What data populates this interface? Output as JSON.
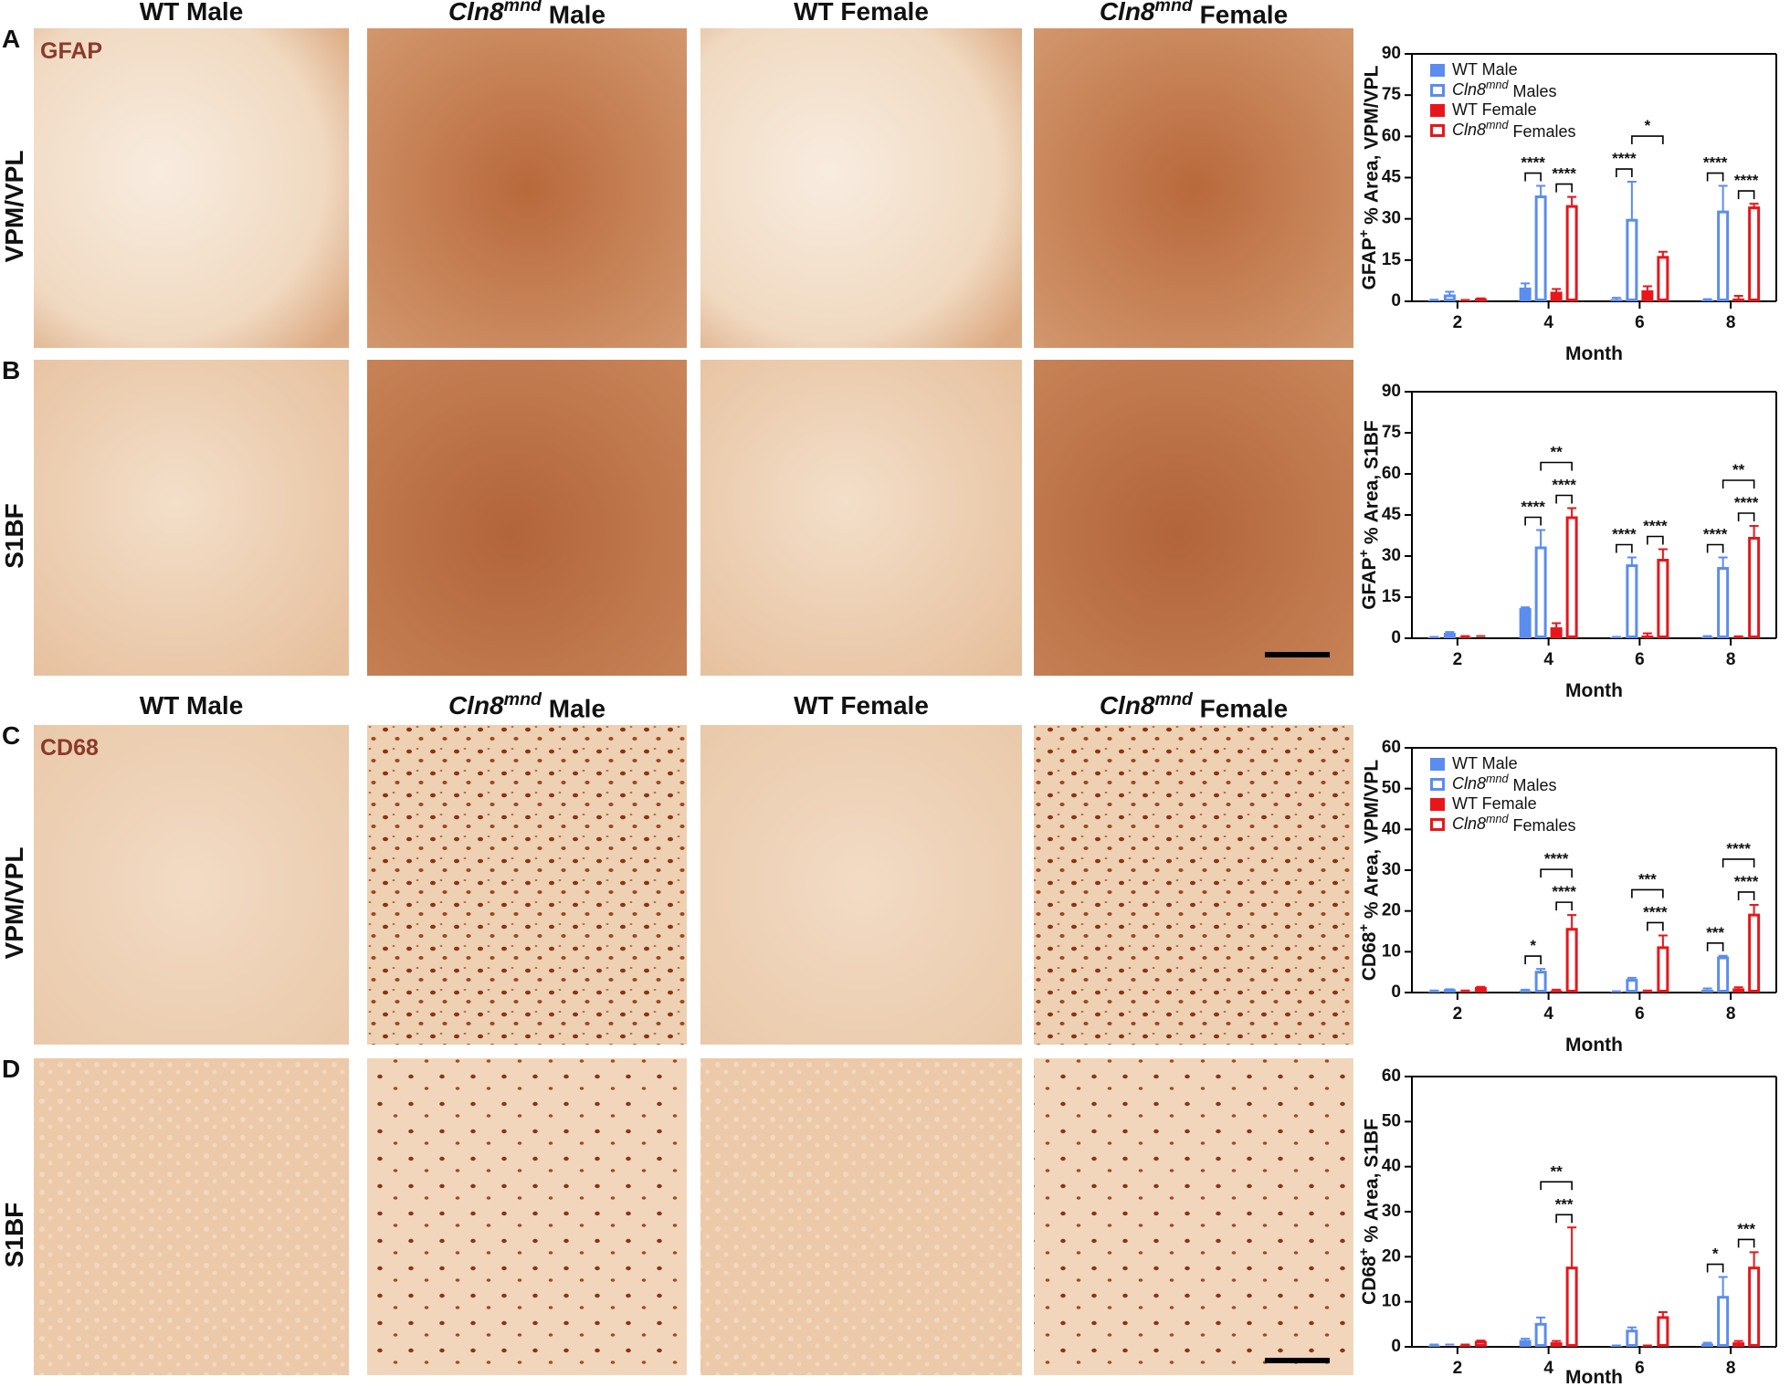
{
  "headers": {
    "top": [
      "WT Male",
      "Cln8mnd Male",
      "WT Female",
      "Cln8mnd Female"
    ],
    "middle": [
      "WT Male",
      "Cln8mnd Male",
      "WT Female",
      "Cln8mnd Female"
    ]
  },
  "panels": [
    {
      "letter": "A",
      "row_label": "VPM/VPL",
      "stain": "GFAP"
    },
    {
      "letter": "B",
      "row_label": "S1BF"
    },
    {
      "letter": "C",
      "row_label": "VPM/VPL",
      "stain": "CD68"
    },
    {
      "letter": "D",
      "row_label": "S1BF"
    }
  ],
  "chart_data": [
    {
      "type": "bar",
      "x_label": "Month",
      "y_label": "GFAP+ % Area, VPM/VPL",
      "categories": [
        "2",
        "4",
        "6",
        "8"
      ],
      "ylim": [
        0,
        90
      ],
      "yticks": [
        0,
        15,
        30,
        45,
        60,
        75,
        90
      ],
      "legend": "upper-left",
      "series": [
        {
          "name": "WT Male",
          "color": "#5b8def",
          "filled": true,
          "values": [
            0.3,
            5,
            0.8,
            0.5
          ],
          "errors": [
            0.3,
            1.5,
            0.5,
            0.3
          ]
        },
        {
          "name": "Cln8mnd Males",
          "color": "#5b8def",
          "filled": false,
          "values": [
            2,
            38,
            29.5,
            32.5
          ],
          "errors": [
            1.5,
            4,
            14,
            9.5
          ]
        },
        {
          "name": "WT Female",
          "color": "#e8161b",
          "filled": true,
          "values": [
            0.3,
            3.5,
            4,
            1
          ],
          "errors": [
            0.2,
            1,
            1.5,
            1
          ]
        },
        {
          "name": "Cln8mnd Females",
          "color": "#e8161b",
          "filled": false,
          "values": [
            0.6,
            34.5,
            16,
            34
          ],
          "errors": [
            0.5,
            3.5,
            2,
            1.5
          ]
        }
      ],
      "annotations": [
        {
          "text": "****",
          "category": 1,
          "series": [
            0,
            1
          ]
        },
        {
          "text": "****",
          "category": 1,
          "series": [
            2,
            3
          ]
        },
        {
          "text": "****",
          "category": 2,
          "series": [
            0,
            1
          ]
        },
        {
          "text": "*",
          "category": 2,
          "series": [
            1,
            3
          ]
        },
        {
          "text": "****",
          "category": 3,
          "series": [
            0,
            1
          ]
        },
        {
          "text": "****",
          "category": 3,
          "series": [
            2,
            3
          ]
        }
      ]
    },
    {
      "type": "bar",
      "x_label": "Month",
      "y_label": "GFAP+ % Area, S1BF",
      "categories": [
        "2",
        "4",
        "6",
        "8"
      ],
      "ylim": [
        0,
        90
      ],
      "yticks": [
        0,
        15,
        30,
        45,
        60,
        75,
        90
      ],
      "series": [
        {
          "color": "#5b8def",
          "filled": true,
          "values": [
            0.3,
            11,
            0.3,
            0.5
          ],
          "errors": [
            0.2,
            0.3,
            0.2,
            0.3
          ]
        },
        {
          "color": "#5b8def",
          "filled": false,
          "values": [
            1.5,
            33,
            26.5,
            25.5
          ],
          "errors": [
            0.8,
            6.5,
            3,
            4
          ]
        },
        {
          "color": "#e8161b",
          "filled": true,
          "values": [
            0.5,
            4,
            1,
            0.5
          ],
          "errors": [
            0.3,
            1.5,
            0.8,
            0.2
          ]
        },
        {
          "color": "#e8161b",
          "filled": false,
          "values": [
            0.5,
            44,
            28.5,
            36.5
          ],
          "errors": [
            0.3,
            3.5,
            4,
            4.5
          ]
        }
      ],
      "annotations": [
        {
          "text": "****",
          "category": 1,
          "series": [
            0,
            1
          ]
        },
        {
          "text": "****",
          "category": 1,
          "series": [
            2,
            3
          ]
        },
        {
          "text": "**",
          "category": 1,
          "series": [
            1,
            3
          ]
        },
        {
          "text": "****",
          "category": 2,
          "series": [
            0,
            1
          ]
        },
        {
          "text": "****",
          "category": 2,
          "series": [
            2,
            3
          ]
        },
        {
          "text": "****",
          "category": 3,
          "series": [
            0,
            1
          ]
        },
        {
          "text": "****",
          "category": 3,
          "series": [
            2,
            3
          ]
        },
        {
          "text": "**",
          "category": 3,
          "series": [
            1,
            3
          ]
        }
      ]
    },
    {
      "type": "bar",
      "x_label": "Month",
      "y_label": "CD68+ % Area, VPM/VPL",
      "categories": [
        "2",
        "4",
        "6",
        "8"
      ],
      "ylim": [
        0,
        60
      ],
      "yticks": [
        0,
        10,
        20,
        30,
        40,
        50,
        60
      ],
      "legend": "upper-left",
      "series": [
        {
          "name": "WT Male",
          "color": "#5b8def",
          "filled": true,
          "values": [
            0.3,
            0.5,
            0.2,
            0.7
          ],
          "errors": [
            0.2,
            0.2,
            0.1,
            0.3
          ]
        },
        {
          "name": "Cln8mnd Males",
          "color": "#5b8def",
          "filled": false,
          "values": [
            0.5,
            5,
            3,
            8.5
          ],
          "errors": [
            0.3,
            0.8,
            0.6,
            0.5
          ]
        },
        {
          "name": "WT Female",
          "color": "#e8161b",
          "filled": true,
          "values": [
            0.3,
            0.5,
            0.3,
            1
          ],
          "errors": [
            0.2,
            0.2,
            0.2,
            0.3
          ]
        },
        {
          "name": "Cln8mnd Females",
          "color": "#e8161b",
          "filled": false,
          "values": [
            1,
            15.5,
            11,
            19
          ],
          "errors": [
            0.4,
            3.5,
            3,
            2.5
          ]
        }
      ],
      "annotations": [
        {
          "text": "*",
          "category": 1,
          "series": [
            0,
            1
          ]
        },
        {
          "text": "****",
          "category": 1,
          "series": [
            2,
            3
          ]
        },
        {
          "text": "****",
          "category": 1,
          "series": [
            1,
            3
          ]
        },
        {
          "text": "****",
          "category": 2,
          "series": [
            2,
            3
          ]
        },
        {
          "text": "***",
          "category": 2,
          "series": [
            1,
            3
          ]
        },
        {
          "text": "***",
          "category": 3,
          "series": [
            0,
            1
          ]
        },
        {
          "text": "****",
          "category": 3,
          "series": [
            2,
            3
          ]
        },
        {
          "text": "****",
          "category": 3,
          "series": [
            1,
            3
          ]
        }
      ]
    },
    {
      "type": "bar",
      "x_label": "Month",
      "y_label": "CD68+ % Area, S1BF",
      "categories": [
        "2",
        "4",
        "6",
        "8"
      ],
      "ylim": [
        0,
        60
      ],
      "yticks": [
        0,
        10,
        20,
        30,
        40,
        50,
        60
      ],
      "series": [
        {
          "color": "#5b8def",
          "filled": true,
          "values": [
            0.3,
            1.5,
            0.2,
            0.7
          ],
          "errors": [
            0.2,
            0.3,
            0.1,
            0.2
          ]
        },
        {
          "color": "#5b8def",
          "filled": false,
          "values": [
            0.3,
            5,
            3.5,
            11
          ],
          "errors": [
            0.2,
            1.5,
            0.8,
            4.5
          ]
        },
        {
          "color": "#e8161b",
          "filled": true,
          "values": [
            0.3,
            1,
            0.2,
            1
          ],
          "errors": [
            0.2,
            0.3,
            0.1,
            0.3
          ]
        },
        {
          "color": "#e8161b",
          "filled": false,
          "values": [
            1,
            17.5,
            6.5,
            17.5
          ],
          "errors": [
            0.4,
            9,
            1.2,
            3.5
          ]
        }
      ],
      "annotations": [
        {
          "text": "***",
          "category": 1,
          "series": [
            2,
            3
          ]
        },
        {
          "text": "**",
          "category": 1,
          "series": [
            1,
            3
          ]
        },
        {
          "text": "*",
          "category": 3,
          "series": [
            0,
            1
          ]
        },
        {
          "text": "***",
          "category": 3,
          "series": [
            2,
            3
          ]
        }
      ]
    }
  ]
}
